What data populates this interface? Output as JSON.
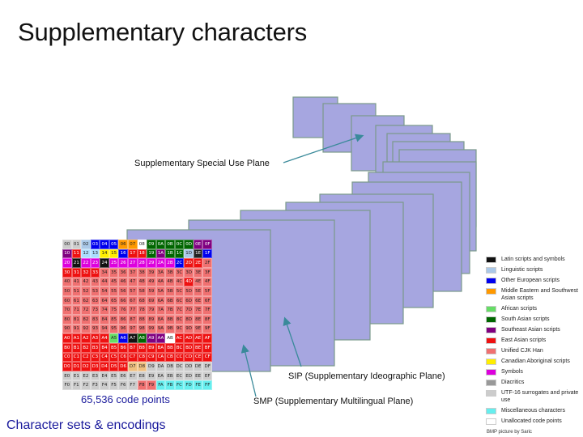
{
  "slide": {
    "title": "Supplementary characters",
    "footer": "Character sets & encodings",
    "credit": "BMP picture by Saric"
  },
  "labels": {
    "ssp": "Supplementary Special Use Plane",
    "sip": "SIP (Supplementary Ideographic Plane)",
    "smp": "SMP (Supplementary Multilingual Plane)",
    "bmp_caption": "65,536 code points"
  },
  "colors": {
    "plane_fill": "#a6a6e0",
    "plane_border": "#7a9a8a",
    "arrow": "#3a8a9a"
  },
  "bmp_grid": {
    "rows": [
      [
        "00",
        "01",
        "02",
        "03",
        "04",
        "05",
        "06",
        "07",
        "08",
        "09",
        "0A",
        "0B",
        "0C",
        "0D",
        "0E",
        "0F"
      ],
      [
        "10",
        "11",
        "12",
        "13",
        "14",
        "15",
        "16",
        "17",
        "18",
        "19",
        "1A",
        "1B",
        "1C",
        "1D",
        "1E",
        "1F"
      ],
      [
        "20",
        "21",
        "22",
        "23",
        "24",
        "25",
        "26",
        "27",
        "28",
        "29",
        "2A",
        "2B",
        "2C",
        "2D",
        "2E",
        "2F"
      ],
      [
        "30",
        "31",
        "32",
        "33",
        "34",
        "35",
        "36",
        "37",
        "38",
        "39",
        "3A",
        "3B",
        "3C",
        "3D",
        "3E",
        "3F"
      ],
      [
        "40",
        "41",
        "42",
        "43",
        "44",
        "45",
        "46",
        "47",
        "48",
        "49",
        "4A",
        "4B",
        "4C",
        "4D",
        "4E",
        "4F"
      ],
      [
        "50",
        "51",
        "52",
        "53",
        "54",
        "55",
        "56",
        "57",
        "58",
        "59",
        "5A",
        "5B",
        "5C",
        "5D",
        "5E",
        "5F"
      ],
      [
        "60",
        "61",
        "62",
        "63",
        "64",
        "65",
        "66",
        "67",
        "68",
        "69",
        "6A",
        "6B",
        "6C",
        "6D",
        "6E",
        "6F"
      ],
      [
        "70",
        "71",
        "72",
        "73",
        "74",
        "75",
        "76",
        "77",
        "78",
        "79",
        "7A",
        "7B",
        "7C",
        "7D",
        "7E",
        "7F"
      ],
      [
        "80",
        "81",
        "82",
        "83",
        "84",
        "85",
        "86",
        "87",
        "88",
        "89",
        "8A",
        "8B",
        "8C",
        "8D",
        "8E",
        "8F"
      ],
      [
        "90",
        "91",
        "92",
        "93",
        "94",
        "95",
        "96",
        "97",
        "98",
        "99",
        "9A",
        "9B",
        "9C",
        "9D",
        "9E",
        "9F"
      ],
      [
        "A0",
        "A1",
        "A2",
        "A3",
        "A4",
        "A5",
        "A6",
        "A7",
        "A8",
        "A9",
        "AA",
        "AB",
        "AC",
        "AD",
        "AE",
        "AF"
      ],
      [
        "B0",
        "B1",
        "B2",
        "B3",
        "B4",
        "B5",
        "B6",
        "B7",
        "B8",
        "B9",
        "BA",
        "BB",
        "BC",
        "BD",
        "BE",
        "BF"
      ],
      [
        "C0",
        "C1",
        "C2",
        "C3",
        "C4",
        "C5",
        "C6",
        "C7",
        "C8",
        "C9",
        "CA",
        "CB",
        "CC",
        "CD",
        "CE",
        "CF"
      ],
      [
        "D0",
        "D1",
        "D2",
        "D3",
        "D4",
        "D5",
        "D6",
        "D7",
        "D8",
        "D9",
        "DA",
        "DB",
        "DC",
        "DD",
        "DE",
        "DF"
      ],
      [
        "E0",
        "E1",
        "E2",
        "E3",
        "E4",
        "E5",
        "E6",
        "E7",
        "E8",
        "E9",
        "EA",
        "EB",
        "EC",
        "ED",
        "EE",
        "EF"
      ],
      [
        "F0",
        "F1",
        "F2",
        "F3",
        "F4",
        "F5",
        "F6",
        "F7",
        "F8",
        "F9",
        "FA",
        "FB",
        "FC",
        "FD",
        "FE",
        "FF"
      ]
    ],
    "colors": [
      [
        "#cccccc",
        "#cccccc",
        "#aac8e8",
        "#0000ee",
        "#0000ee",
        "#0000ee",
        "#ff9900",
        "#ff9900",
        "#ffffff",
        "#006600",
        "#006600",
        "#006600",
        "#006600",
        "#006600",
        "#800080",
        "#800080"
      ],
      [
        "#800080",
        "#ee1111",
        "#aaddff",
        "#aaddff",
        "#ffee00",
        "#ffee00",
        "#0000ee",
        "#ee1111",
        "#ee1111",
        "#006600",
        "#800080",
        "#006600",
        "#006600",
        "#aac8e8",
        "#222222",
        "#0000ee"
      ],
      [
        "#dd00dd",
        "#111111",
        "#dd00dd",
        "#dd00dd",
        "#111111",
        "#dd00dd",
        "#dd00dd",
        "#dd00dd",
        "#dd00dd",
        "#dd00dd",
        "#dd00dd",
        "#dd00dd",
        "#0000ee",
        "#ee1111",
        "#ee1111",
        "#f07070"
      ],
      [
        "#ee1111",
        "#ee1111",
        "#ee1111",
        "#ee1111",
        "#f07070",
        "#f07070",
        "#f07070",
        "#f07070",
        "#f07070",
        "#f07070",
        "#f07070",
        "#f07070",
        "#f07070",
        "#f07070",
        "#f07070",
        "#f07070"
      ],
      [
        "#f07070",
        "#f07070",
        "#f07070",
        "#f07070",
        "#f07070",
        "#f07070",
        "#f07070",
        "#f07070",
        "#f07070",
        "#f07070",
        "#f07070",
        "#f07070",
        "#f07070",
        "#ee1111",
        "#f07070",
        "#f07070"
      ],
      [
        "#f07070",
        "#f07070",
        "#f07070",
        "#f07070",
        "#f07070",
        "#f07070",
        "#f07070",
        "#f07070",
        "#f07070",
        "#f07070",
        "#f07070",
        "#f07070",
        "#f07070",
        "#f07070",
        "#f07070",
        "#f07070"
      ],
      [
        "#f07070",
        "#f07070",
        "#f07070",
        "#f07070",
        "#f07070",
        "#f07070",
        "#f07070",
        "#f07070",
        "#f07070",
        "#f07070",
        "#f07070",
        "#f07070",
        "#f07070",
        "#f07070",
        "#f07070",
        "#f07070"
      ],
      [
        "#f07070",
        "#f07070",
        "#f07070",
        "#f07070",
        "#f07070",
        "#f07070",
        "#f07070",
        "#f07070",
        "#f07070",
        "#f07070",
        "#f07070",
        "#f07070",
        "#f07070",
        "#f07070",
        "#f07070",
        "#f07070"
      ],
      [
        "#f07070",
        "#f07070",
        "#f07070",
        "#f07070",
        "#f07070",
        "#f07070",
        "#f07070",
        "#f07070",
        "#f07070",
        "#f07070",
        "#f07070",
        "#f07070",
        "#f07070",
        "#f07070",
        "#f07070",
        "#f07070"
      ],
      [
        "#f07070",
        "#f07070",
        "#f07070",
        "#f07070",
        "#f07070",
        "#f07070",
        "#f07070",
        "#f07070",
        "#f07070",
        "#f07070",
        "#f07070",
        "#f07070",
        "#f07070",
        "#f07070",
        "#f07070",
        "#f07070"
      ],
      [
        "#ee1111",
        "#ee1111",
        "#ee1111",
        "#ee1111",
        "#ee1111",
        "#66dd66",
        "#0000ee",
        "#111111",
        "#006600",
        "#800080",
        "#800080",
        "#ffffff",
        "#ee1111",
        "#ee1111",
        "#ee1111",
        "#ee1111"
      ],
      [
        "#ee1111",
        "#ee1111",
        "#ee1111",
        "#ee1111",
        "#ee1111",
        "#ee1111",
        "#ee1111",
        "#ee1111",
        "#ee1111",
        "#ee1111",
        "#ee1111",
        "#ee1111",
        "#ee1111",
        "#ee1111",
        "#ee1111",
        "#ee1111"
      ],
      [
        "#ee1111",
        "#ee1111",
        "#ee1111",
        "#ee1111",
        "#ee1111",
        "#ee1111",
        "#ee1111",
        "#ee1111",
        "#ee1111",
        "#ee1111",
        "#ee1111",
        "#ee1111",
        "#ee1111",
        "#ee1111",
        "#ee1111",
        "#ee1111"
      ],
      [
        "#ee1111",
        "#ee1111",
        "#ee1111",
        "#ee1111",
        "#ee1111",
        "#ee1111",
        "#ee1111",
        "#f0c080",
        "#f0c080",
        "#cccccc",
        "#cccccc",
        "#cccccc",
        "#cccccc",
        "#cccccc",
        "#cccccc",
        "#cccccc"
      ],
      [
        "#cccccc",
        "#cccccc",
        "#cccccc",
        "#cccccc",
        "#cccccc",
        "#cccccc",
        "#cccccc",
        "#cccccc",
        "#cccccc",
        "#cccccc",
        "#cccccc",
        "#cccccc",
        "#cccccc",
        "#cccccc",
        "#cccccc",
        "#cccccc"
      ],
      [
        "#cccccc",
        "#cccccc",
        "#cccccc",
        "#cccccc",
        "#cccccc",
        "#cccccc",
        "#cccccc",
        "#cccccc",
        "#f07070",
        "#f07070",
        "#66eeee",
        "#66eeee",
        "#66eeee",
        "#66eeee",
        "#66eeee",
        "#66eeee"
      ]
    ]
  },
  "legend": [
    {
      "label": "Latin scripts and symbols",
      "color": "#111111"
    },
    {
      "label": "Linguistic scripts",
      "color": "#aac8e8"
    },
    {
      "label": "Other European scripts",
      "color": "#0000ee"
    },
    {
      "label": "Middle Eastern and Southwest Asian scripts",
      "color": "#ff9900"
    },
    {
      "label": "African scripts",
      "color": "#66dd66"
    },
    {
      "label": "South Asian scripts",
      "color": "#006600"
    },
    {
      "label": "Southeast Asian scripts",
      "color": "#800080"
    },
    {
      "label": "East Asian scripts",
      "color": "#ee1111"
    },
    {
      "label": "Unified CJK Han",
      "color": "#f07070"
    },
    {
      "label": "Canadian Aboriginal scripts",
      "color": "#ffee00"
    },
    {
      "label": "Symbols",
      "color": "#dd00dd"
    },
    {
      "label": "Diacritics",
      "color": "#999999"
    },
    {
      "label": "UTF-16 surrogates and private use",
      "color": "#cccccc"
    },
    {
      "label": "Miscellaneous characters",
      "color": "#66eeee"
    },
    {
      "label": "Unallocated code points",
      "color": "#ffffff"
    }
  ]
}
